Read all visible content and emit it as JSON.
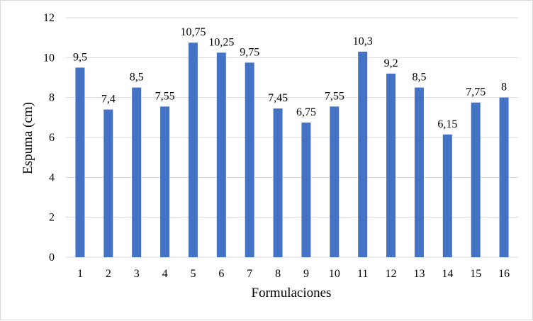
{
  "chart_data": {
    "type": "bar",
    "title": "",
    "xlabel": "Formulaciones",
    "ylabel": "Espuma (cm)",
    "ylim": [
      0,
      12
    ],
    "yticks": [
      0,
      2,
      4,
      6,
      8,
      10,
      12
    ],
    "ytick_labels": [
      "0",
      "2",
      "4",
      "6",
      "8",
      "10",
      "12"
    ],
    "grid": true,
    "legend": "none",
    "categories": [
      "1",
      "2",
      "3",
      "4",
      "5",
      "6",
      "7",
      "8",
      "9",
      "10",
      "11",
      "12",
      "13",
      "14",
      "15",
      "16"
    ],
    "values": [
      9.5,
      7.4,
      8.5,
      7.55,
      10.75,
      10.25,
      9.75,
      7.45,
      6.75,
      7.55,
      10.3,
      9.2,
      8.5,
      6.15,
      7.75,
      8
    ],
    "data_labels": [
      "9,5",
      "7,4",
      "8,5",
      "7,55",
      "10,75",
      "10,25",
      "9,75",
      "7,45",
      "6,75",
      "7,55",
      "10,3",
      "9,2",
      "8,5",
      "6,15",
      "7,75",
      "8"
    ],
    "colors": {
      "bar": "#4472c4",
      "grid": "#d9d9d9",
      "axis": "#d9d9d9",
      "text": "#000000"
    }
  }
}
